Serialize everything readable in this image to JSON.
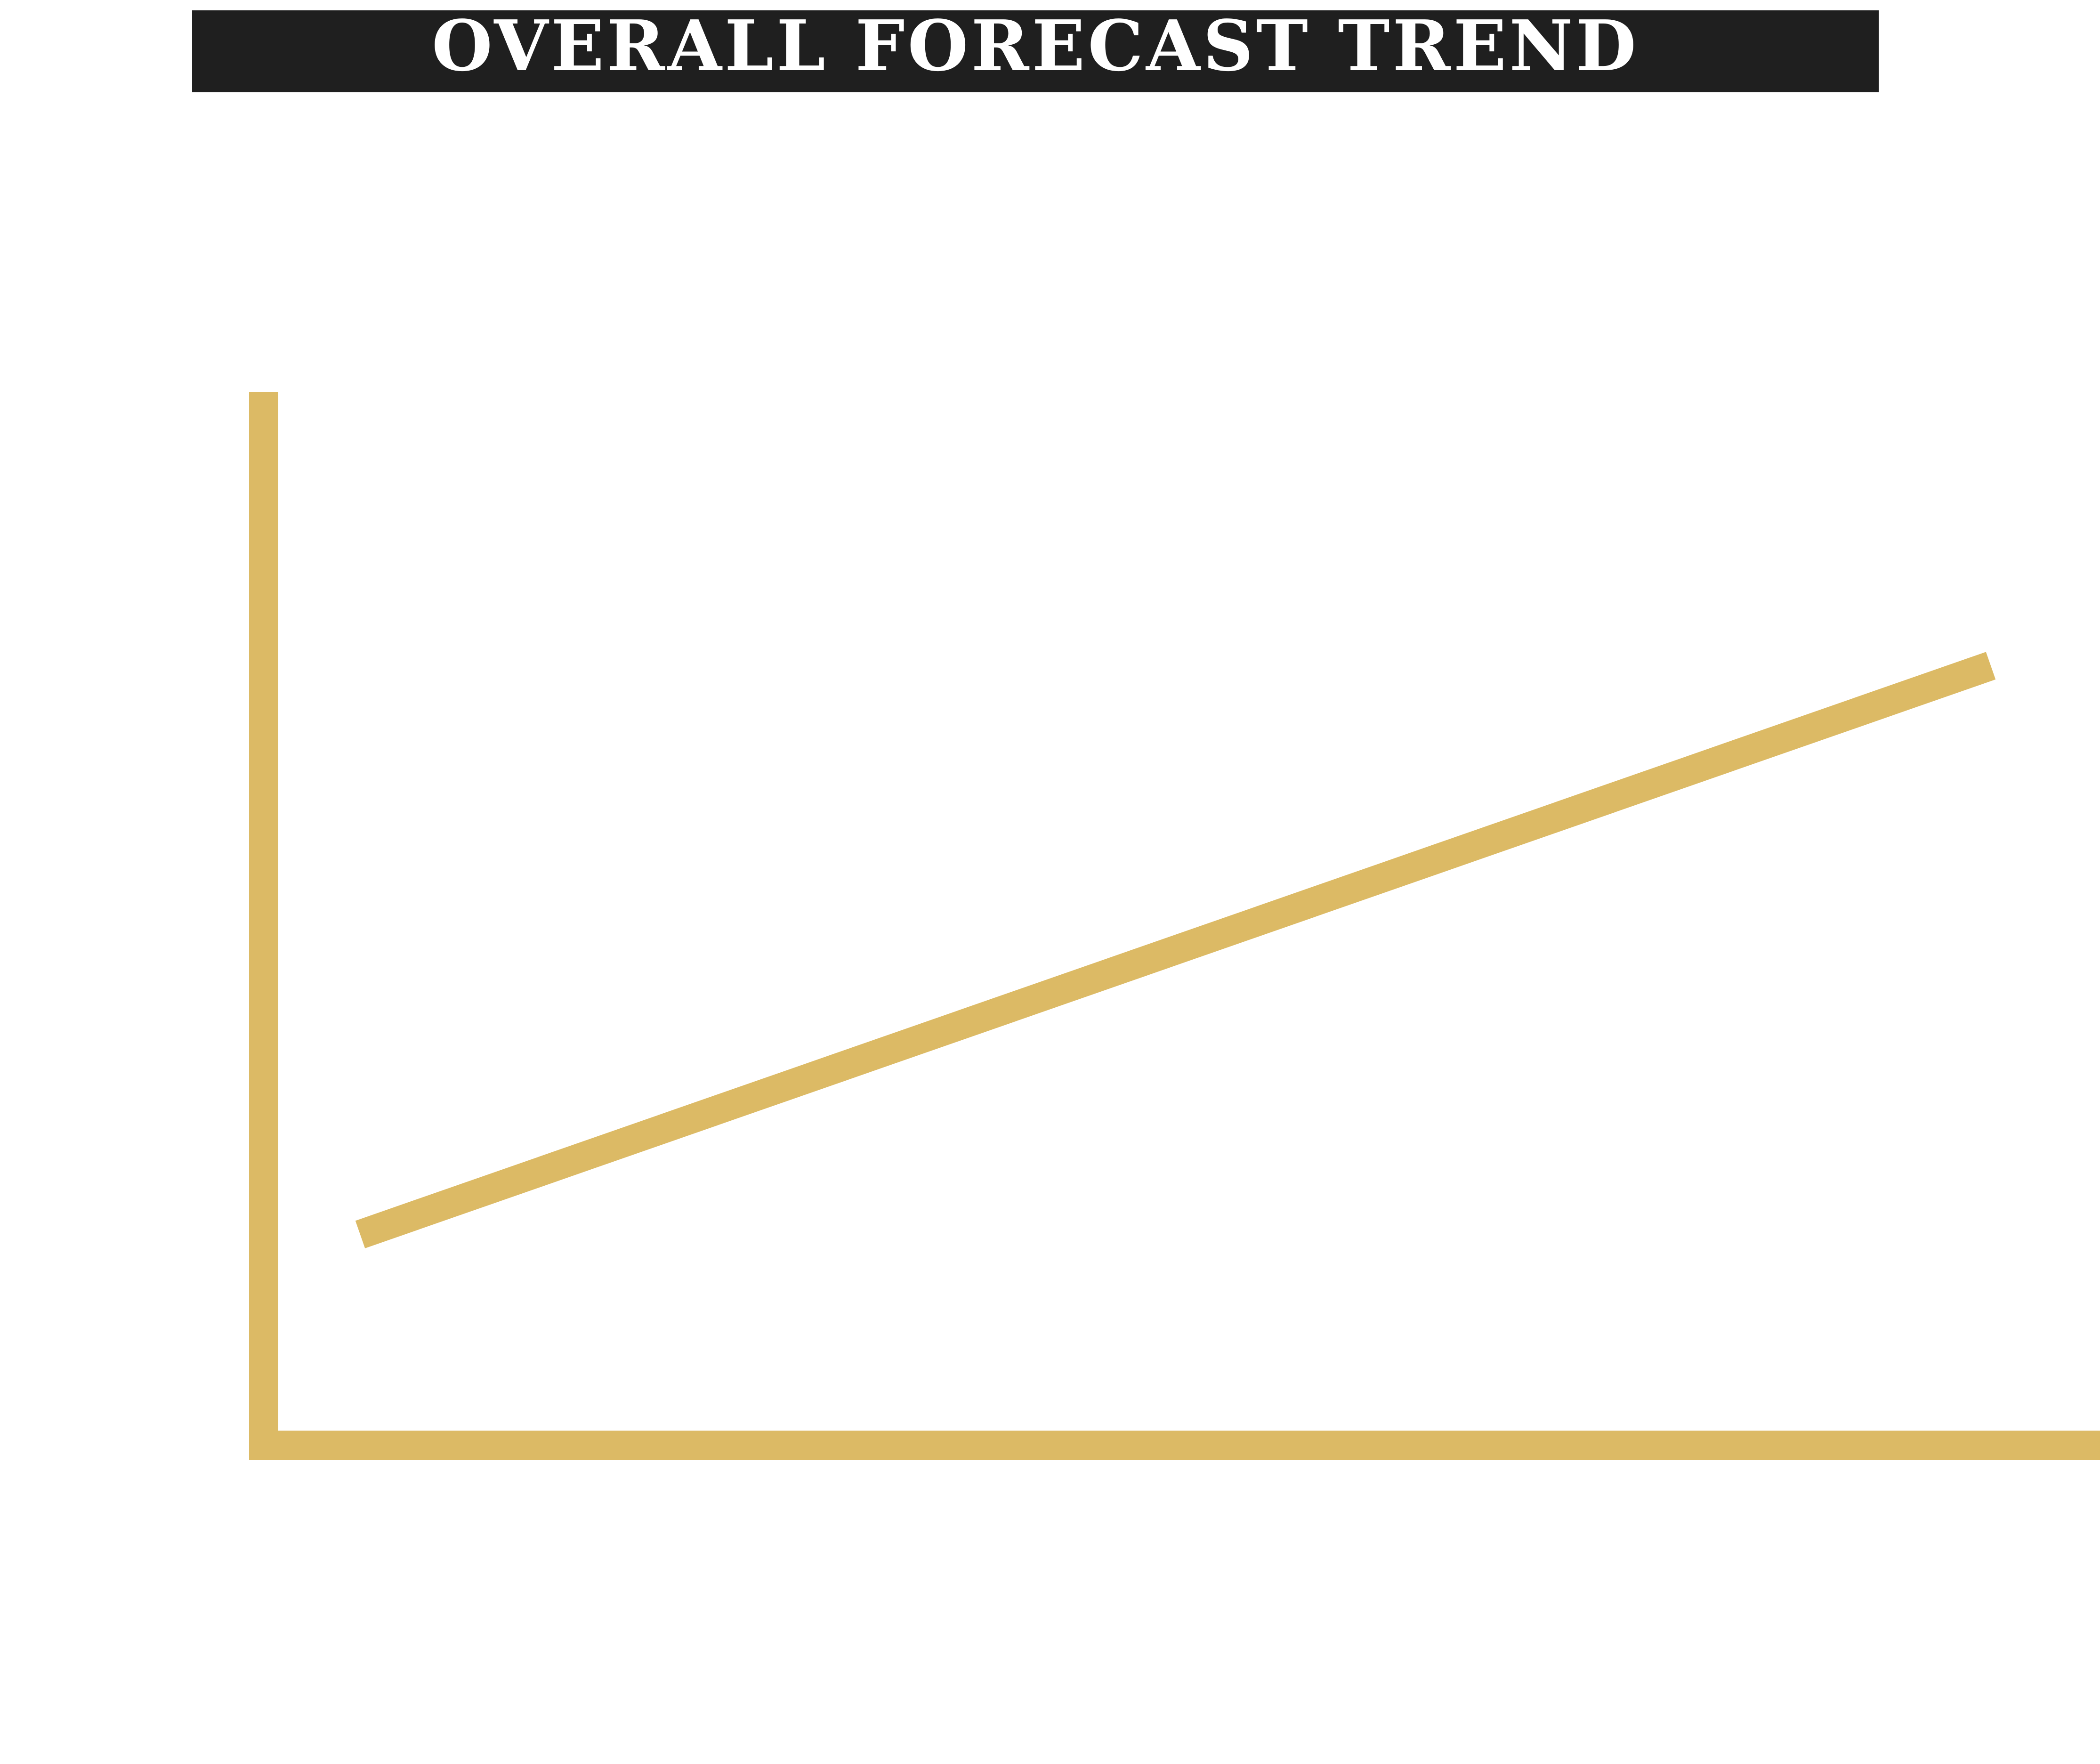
{
  "chart_data": {
    "type": "line",
    "title": "OVERALL FORECAST TREND",
    "xlabel": "",
    "ylabel": "",
    "series": [
      {
        "values": [
          [
            0,
            0.2
          ],
          [
            1,
            0.74
          ]
        ]
      }
    ],
    "xlim": [
      0,
      1
    ],
    "ylim": [
      0,
      1
    ],
    "grid": false,
    "show_tick_labels": false
  },
  "colors": {
    "line": "#dcba65",
    "axis": "#dcba65",
    "title_bar": "#1f1f1f",
    "title_text": "#ffffff",
    "background": "#ffffff"
  }
}
